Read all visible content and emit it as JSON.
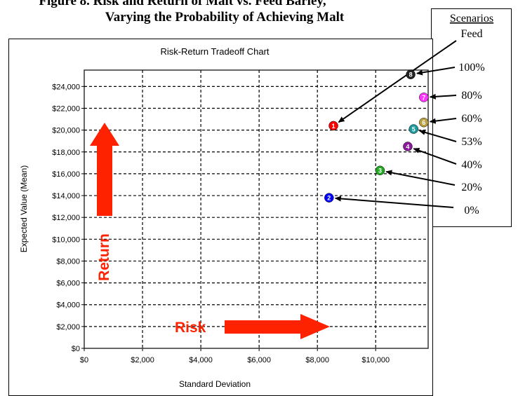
{
  "figure": {
    "title_line1": "Figure 8.   Risk and Return of Malt vs. Feed Barley,",
    "title_line2": "Varying the Probability of Achieving Malt"
  },
  "scenarios_box": {
    "heading": "Scenarios",
    "labels": [
      "Feed",
      "100%",
      "80%",
      "60%",
      "53%",
      "40%",
      "20%",
      "0%"
    ]
  },
  "arrows": {
    "return_label": "Return",
    "risk_label": "Risk",
    "color": "#ff2200"
  },
  "chart_data": {
    "type": "scatter",
    "title": "Risk-Return Tradeoff Chart",
    "xlabel": "Standard Deviation",
    "ylabel": "Expected Value (Mean)",
    "xlim": [
      0,
      11800
    ],
    "ylim": [
      0,
      25500
    ],
    "x_ticks": [
      "$0",
      "$2,000",
      "$4,000",
      "$6,000",
      "$8,000",
      "$10,000"
    ],
    "x_tick_values": [
      0,
      2000,
      4000,
      6000,
      8000,
      10000
    ],
    "y_ticks": [
      "$0",
      "$2,000",
      "$4,000",
      "$6,000",
      "$8,000",
      "$10,000",
      "$12,000",
      "$14,000",
      "$16,000",
      "$18,000",
      "$20,000",
      "$22,000",
      "$24,000"
    ],
    "y_tick_values": [
      0,
      2000,
      4000,
      6000,
      8000,
      10000,
      12000,
      14000,
      16000,
      18000,
      20000,
      22000,
      24000
    ],
    "grid": true,
    "points": [
      {
        "marker": "1",
        "scenario": "Feed",
        "x": 8550,
        "y": 20400,
        "color": "#ff0000"
      },
      {
        "marker": "2",
        "scenario": "0%",
        "x": 8400,
        "y": 13800,
        "color": "#0000ff"
      },
      {
        "marker": "3",
        "scenario": "20%",
        "x": 10150,
        "y": 16300,
        "color": "#22a822"
      },
      {
        "marker": "4",
        "scenario": "40%",
        "x": 11100,
        "y": 18500,
        "color": "#8a1a9a"
      },
      {
        "marker": "5",
        "scenario": "53%",
        "x": 11300,
        "y": 20100,
        "color": "#1a9a9a"
      },
      {
        "marker": "6",
        "scenario": "60%",
        "x": 11650,
        "y": 20700,
        "color": "#b8a040"
      },
      {
        "marker": "7",
        "scenario": "80%",
        "x": 11650,
        "y": 23000,
        "color": "#ff33ff"
      },
      {
        "marker": "8",
        "scenario": "100%",
        "x": 11200,
        "y": 25100,
        "color": "#222222"
      }
    ]
  }
}
